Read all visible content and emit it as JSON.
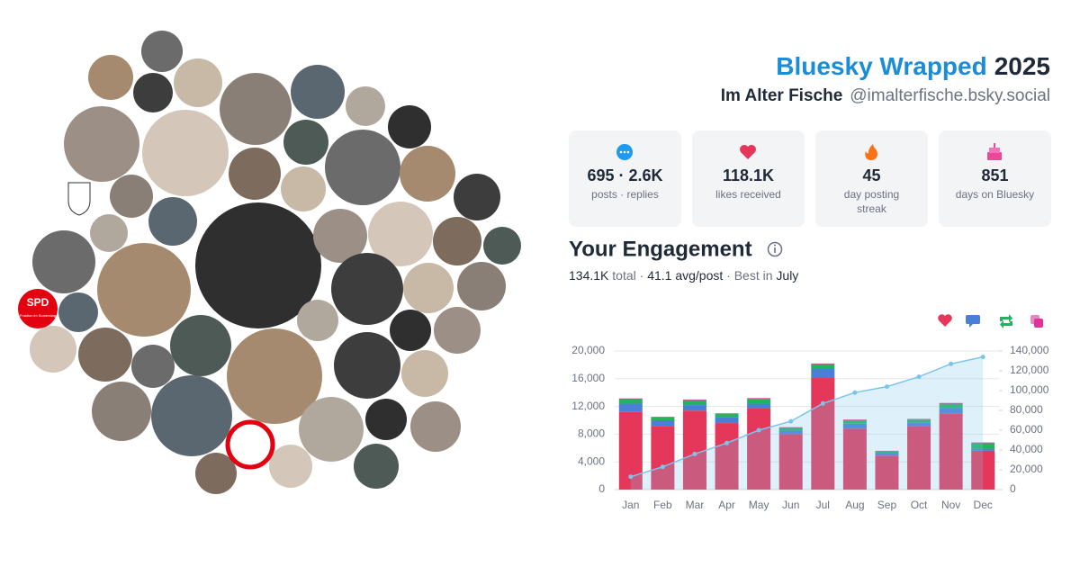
{
  "header": {
    "title": "Bluesky Wrapped",
    "year": "2025",
    "name": "Im Alter Fische",
    "handle": "@imalterfische.bsky.social"
  },
  "avatars": {
    "badge": "SPD",
    "badge_sub": "Fraktion im Bundestag"
  },
  "stats": [
    {
      "value": "695 · 2.6K",
      "label": [
        "posts · replies"
      ]
    },
    {
      "value": "118.1K",
      "label": [
        "likes received"
      ]
    },
    {
      "value": "45",
      "label": [
        "day posting",
        "streak"
      ]
    },
    {
      "value": "851",
      "label": [
        "days on Bluesky"
      ]
    }
  ],
  "engagement": {
    "title": "Your Engagement",
    "total": "134.1K",
    "total_label": "total",
    "separator": "·",
    "avg": "41.1 avg/post",
    "best_prefix": "Best in",
    "best": "July"
  },
  "chart_data": {
    "type": "bar",
    "stacked": true,
    "grid": true,
    "categories": [
      "Jan",
      "Feb",
      "Mar",
      "Apr",
      "May",
      "Jun",
      "Jul",
      "Aug",
      "Sep",
      "Oct",
      "Nov",
      "Dec"
    ],
    "series": [
      {
        "color": "#e5375a",
        "values": [
          11200,
          9200,
          11400,
          9600,
          11800,
          8000,
          16100,
          8800,
          4900,
          9100,
          11000,
          5600
        ]
      },
      {
        "color": "#4a7fd8",
        "values": [
          1200,
          800,
          800,
          800,
          600,
          500,
          1300,
          700,
          300,
          600,
          800,
          300
        ]
      },
      {
        "color": "#22b35e",
        "values": [
          650,
          400,
          700,
          500,
          700,
          400,
          700,
          500,
          300,
          400,
          600,
          800
        ]
      },
      {
        "color": "#e0329a",
        "values": [
          100,
          100,
          100,
          100,
          100,
          100,
          100,
          100,
          100,
          100,
          100,
          100
        ]
      },
      {
        "type": "line",
        "axis": "y2",
        "color": "#7cc4ec",
        "values": [
          13000,
          23000,
          36000,
          47000,
          60000,
          69000,
          87000,
          98000,
          104000,
          114000,
          127000,
          134000
        ]
      }
    ],
    "ylim": [
      0,
      20000
    ],
    "yticks": [
      0,
      {
        "value": 4000,
        "label": "4,000"
      },
      {
        "value": 8000,
        "label": "8,000"
      },
      {
        "value": 12000,
        "label": "12,000"
      },
      {
        "value": 16000,
        "label": "16,000"
      },
      {
        "value": 20000,
        "label": "20,000"
      }
    ],
    "y2lim": [
      0,
      140000
    ],
    "y2ticks": [
      0,
      {
        "value": 20000,
        "label": "20,000"
      },
      {
        "value": 40000,
        "label": "40,000"
      },
      {
        "value": 60000,
        "label": "60,000"
      },
      {
        "value": 80000,
        "label": "80,000"
      },
      {
        "value": 100000,
        "label": "100,000"
      },
      {
        "value": 120000,
        "label": "120,000"
      },
      {
        "value": 140000,
        "label": "140,000"
      }
    ]
  }
}
